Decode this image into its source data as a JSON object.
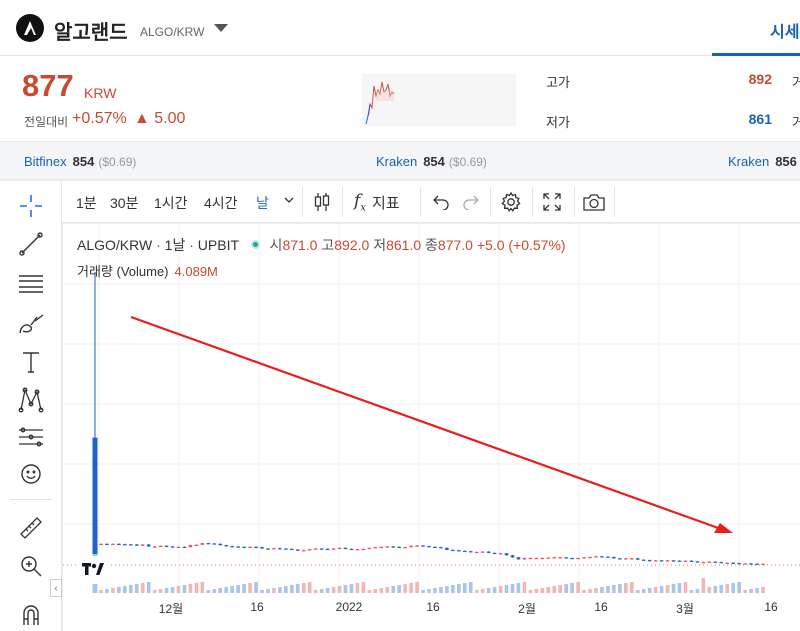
{
  "header": {
    "coin_name": "알고랜드",
    "coin_pair": "ALGO/KRW",
    "tab_label": "시세"
  },
  "price": {
    "value": "877",
    "unit": "KRW",
    "change_label": "전일대비",
    "change_rate": "+0.57%",
    "change_amount": "▲ 5.00",
    "high_label": "고가",
    "high_value": "892",
    "low_label": "저가",
    "low_value": "861",
    "next_col_1": "거",
    "next_col_2": "거"
  },
  "exchanges": [
    {
      "name": "Bitfinex",
      "price": "854",
      "diff": "($0.69)"
    },
    {
      "name": "Kraken",
      "price": "854",
      "diff": "($0.69)"
    },
    {
      "name": "Kraken",
      "price": "856",
      "diff": ""
    }
  ],
  "toolbar": {
    "intervals": [
      "1분",
      "30분",
      "1시간",
      "4시간",
      "날"
    ],
    "active_interval": "날",
    "indicator_label": "지표"
  },
  "chart": {
    "legend": {
      "symbol": "ALGO/KRW",
      "interval": "1날",
      "exchange": "UPBIT",
      "open_label": "시",
      "open": "871.0",
      "high_label": "고",
      "high": "892.0",
      "low_label": "저",
      "low": "861.0",
      "close_label": "종",
      "close": "877.0",
      "change": "+5.0 (+0.57%)"
    },
    "volume_legend": {
      "label": "거래량 (Volume)",
      "value": "4.089M"
    },
    "x_labels": [
      "12월",
      "16",
      "2022",
      "16",
      "2월",
      "16",
      "3월",
      "16"
    ],
    "colors": {
      "up": "#ef5350",
      "down": "#1e63c9",
      "trend_arrow": "#e8201c"
    }
  },
  "chart_data": {
    "type": "candlestick",
    "x": [
      "2021-11-24",
      "2021-11-25",
      "2021-11-26",
      "2021-11-27",
      "2021-11-28",
      "2021-11-29",
      "2021-11-30",
      "2021-12-01",
      "2021-12-02",
      "2021-12-03",
      "2021-12-04",
      "2021-12-05",
      "2021-12-06",
      "2021-12-07",
      "2021-12-08",
      "2021-12-09",
      "2021-12-10",
      "2021-12-11",
      "2021-12-12",
      "2021-12-13",
      "2021-12-14",
      "2021-12-15",
      "2021-12-16",
      "2021-12-17",
      "2021-12-18",
      "2021-12-19",
      "2021-12-20",
      "2021-12-21",
      "2021-12-22",
      "2021-12-23",
      "2021-12-24",
      "2021-12-25",
      "2021-12-26",
      "2021-12-27",
      "2021-12-28",
      "2021-12-29",
      "2021-12-30",
      "2021-12-31",
      "2022-01-01",
      "2022-01-02",
      "2022-01-03",
      "2022-01-04",
      "2022-01-05",
      "2022-01-06",
      "2022-01-07",
      "2022-01-08",
      "2022-01-09",
      "2022-01-10",
      "2022-01-11",
      "2022-01-12",
      "2022-01-13",
      "2022-01-14",
      "2022-01-15",
      "2022-01-16",
      "2022-01-17",
      "2022-01-18",
      "2022-01-19",
      "2022-01-20",
      "2022-01-21",
      "2022-01-22",
      "2022-01-23",
      "2022-01-24",
      "2022-01-25",
      "2022-01-26",
      "2022-01-27",
      "2022-01-28",
      "2022-01-29",
      "2022-01-30",
      "2022-01-31",
      "2022-02-01",
      "2022-02-02",
      "2022-02-03",
      "2022-02-04",
      "2022-02-05",
      "2022-02-06",
      "2022-02-07",
      "2022-02-08",
      "2022-02-09",
      "2022-02-10",
      "2022-02-11",
      "2022-02-12",
      "2022-02-13",
      "2022-02-14",
      "2022-02-15",
      "2022-02-16",
      "2022-02-17",
      "2022-02-18",
      "2022-02-19",
      "2022-02-20",
      "2022-02-21",
      "2022-02-22",
      "2022-02-23",
      "2022-02-24",
      "2022-02-25",
      "2022-02-26",
      "2022-02-27",
      "2022-02-28",
      "2022-03-01",
      "2022-03-02",
      "2022-03-03",
      "2022-03-04",
      "2022-03-05",
      "2022-03-06",
      "2022-03-07",
      "2022-03-08",
      "2022-03-09",
      "2022-03-10",
      "2022-03-11",
      "2022-03-12",
      "2022-03-13",
      "2022-03-14",
      "2022-03-15"
    ],
    "close": [
      2460,
      2455,
      2460,
      2450,
      2445,
      2440,
      2410,
      2440,
      2380,
      2380,
      2400,
      2380,
      2360,
      2370,
      2360,
      2420,
      2430,
      2480,
      2470,
      2460,
      2420,
      2390,
      2380,
      2370,
      2360,
      2370,
      2360,
      2320,
      2310,
      2330,
      2320,
      2310,
      2290,
      2260,
      2270,
      2300,
      2320,
      2310,
      2300,
      2320,
      2340,
      2310,
      2290,
      2300,
      2310,
      2340,
      2360,
      2370,
      2380,
      2370,
      2350,
      2360,
      2400,
      2410,
      2390,
      2370,
      2360,
      2340,
      2280,
      2270,
      2250,
      2240,
      2220,
      2220,
      2230,
      2190,
      2170,
      2180,
      2120,
      2060,
      2000,
      2040,
      2040,
      2040,
      2040,
      2050,
      2060,
      2060,
      2040,
      2030,
      2040,
      2060,
      2070,
      2090,
      2080,
      2070,
      2030,
      2020,
      2030,
      2030,
      1990,
      1980,
      1950,
      1970,
      1960,
      1970,
      1960,
      1950,
      1960,
      1940,
      1920,
      1920,
      1930,
      1920,
      1900,
      1900,
      1890,
      1880,
      1880,
      1870,
      1860,
      877
    ],
    "open": [
      2430,
      2460,
      2455,
      2460,
      2450,
      2445,
      2440,
      2410,
      2440,
      2380,
      2380,
      2400,
      2380,
      2360,
      2370,
      2360,
      2420,
      2430,
      2480,
      2470,
      2460,
      2420,
      2390,
      2380,
      2370,
      2360,
      2370,
      2360,
      2320,
      2310,
      2330,
      2320,
      2310,
      2290,
      2260,
      2270,
      2300,
      2320,
      2310,
      2300,
      2320,
      2340,
      2310,
      2290,
      2300,
      2310,
      2340,
      2360,
      2370,
      2380,
      2370,
      2350,
      2360,
      2400,
      2410,
      2390,
      2370,
      2360,
      2340,
      2280,
      2270,
      2250,
      2240,
      2220,
      2220,
      2230,
      2190,
      2170,
      2180,
      2120,
      2060,
      2000,
      2040,
      2040,
      2040,
      2040,
      2050,
      2060,
      2060,
      2040,
      2030,
      2040,
      2060,
      2070,
      2090,
      2080,
      2070,
      2030,
      2020,
      2030,
      2030,
      1990,
      1980,
      1950,
      1970,
      1960,
      1970,
      1960,
      1950,
      1960,
      1940,
      1920,
      1920,
      1930,
      1920,
      1900,
      1900,
      1890,
      1880,
      1880,
      1870,
      871
    ],
    "first_candle": {
      "open": 1500,
      "high": 10500,
      "low": 1350,
      "close": 5600
    },
    "ylabel": "",
    "xlabel": "",
    "volume_series_present": true,
    "trend_arrow_annotation": "down",
    "grid": true
  }
}
